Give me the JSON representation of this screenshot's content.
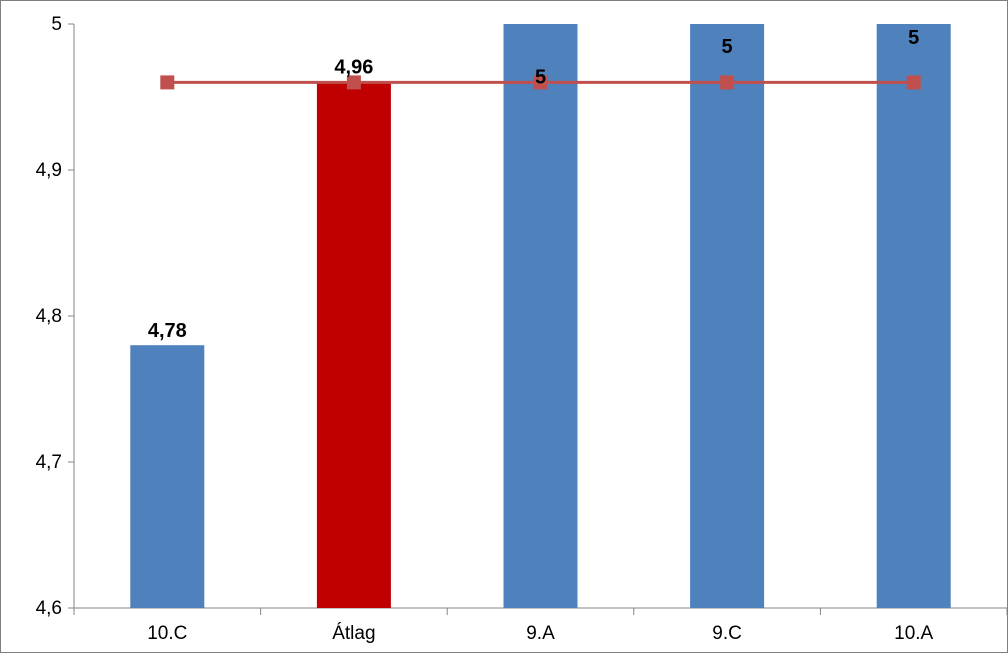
{
  "chart_data": {
    "type": "bar",
    "categories": [
      "10.C",
      "Átlag",
      "9.A",
      "9.C",
      "10.A"
    ],
    "series": [
      {
        "values": [
          4.78,
          4.96,
          5,
          5,
          5
        ],
        "data_labels": [
          "4,78",
          "4,96",
          "5",
          "5",
          "5"
        ],
        "colors": [
          "#4f81bd",
          "#c00000",
          "#4f81bd",
          "#4f81bd",
          "#4f81bd"
        ]
      },
      {
        "type": "line",
        "values": [
          4.96,
          4.96,
          4.96,
          4.96,
          4.96
        ],
        "color": "#c0504d",
        "marker": "square"
      }
    ],
    "ylim": [
      4.6,
      5
    ],
    "yticks": [
      4.6,
      4.7,
      4.8,
      4.9,
      5
    ],
    "ytick_labels": [
      "4,6",
      "4,7",
      "4,8",
      "4,9",
      "5"
    ],
    "grid": false,
    "legend": "none",
    "title": "",
    "xlabel": "",
    "ylabel": ""
  }
}
